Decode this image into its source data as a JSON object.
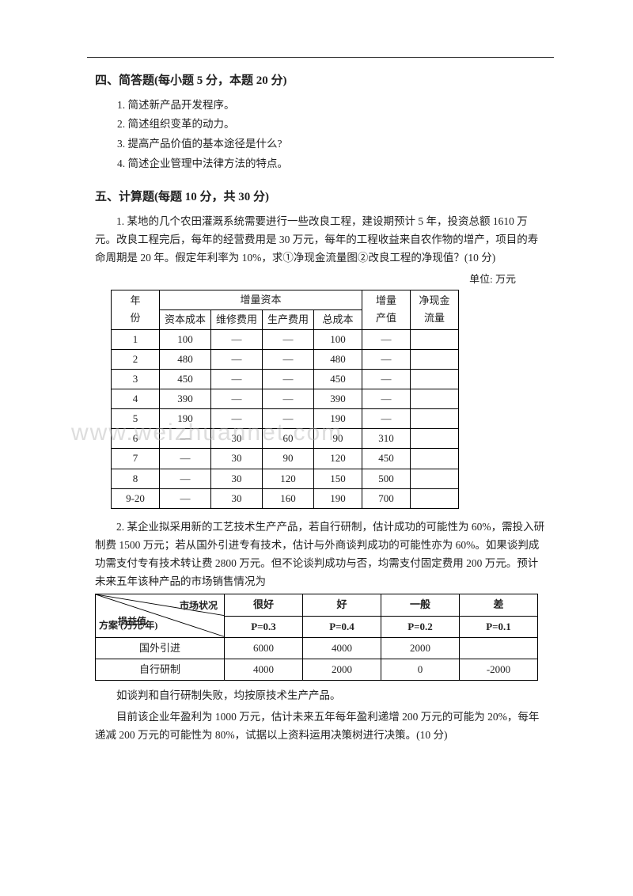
{
  "section4": {
    "heading": "四、简答题(每小题 5 分，本题 20 分)",
    "items": [
      "1. 简述新产品开发程序。",
      "2. 简述组织变革的动力。",
      "3. 提高产品价值的基本途径是什么?",
      "4. 简述企业管理中法律方法的特点。"
    ]
  },
  "section5": {
    "heading": "五、计算题(每题 10 分，共 30 分)",
    "q1_text": "1. 某地的几个农田灌溉系统需要进行一些改良工程，建设期预计 5 年，投资总额 1610 万元。改良工程完后，每年的经营费用是 30 万元，每年的工程收益来自农作物的增产，项目的寿命周期是 20 年。假定年利率为 10%，求①净现金流量图②改良工程的净现值？(10 分)",
    "unit_label": "单位: 万元",
    "table1": {
      "col_year_top": "年",
      "col_year_bot": "份",
      "col_cap": "增量资本",
      "col_cap1": "资本成本",
      "col_cap2": "维修费用",
      "col_cap3": "生产费用",
      "col_cap4": "总成本",
      "col_inc_top": "增量",
      "col_inc_bot": "产值",
      "col_cash_top": "净现金",
      "col_cash_bot": "流量",
      "rows": [
        {
          "y": "1",
          "c1": "100",
          "c2": "—",
          "c3": "—",
          "c4": "100",
          "inc": "—",
          "cash": ""
        },
        {
          "y": "2",
          "c1": "480",
          "c2": "—",
          "c3": "—",
          "c4": "480",
          "inc": "—",
          "cash": ""
        },
        {
          "y": "3",
          "c1": "450",
          "c2": "—",
          "c3": "—",
          "c4": "450",
          "inc": "—",
          "cash": ""
        },
        {
          "y": "4",
          "c1": "390",
          "c2": "—",
          "c3": "—",
          "c4": "390",
          "inc": "—",
          "cash": ""
        },
        {
          "y": "5",
          "c1": "190",
          "c2": "—",
          "c3": "—",
          "c4": "190",
          "inc": "—",
          "cash": ""
        },
        {
          "y": "6",
          "c1": "—",
          "c2": "30",
          "c3": "60",
          "c4": "90",
          "inc": "310",
          "cash": ""
        },
        {
          "y": "7",
          "c1": "—",
          "c2": "30",
          "c3": "90",
          "c4": "120",
          "inc": "450",
          "cash": ""
        },
        {
          "y": "8",
          "c1": "—",
          "c2": "30",
          "c3": "120",
          "c4": "150",
          "inc": "500",
          "cash": ""
        },
        {
          "y": "9-20",
          "c1": "—",
          "c2": "30",
          "c3": "160",
          "c4": "190",
          "inc": "700",
          "cash": ""
        }
      ]
    },
    "q2_text": "2. 某企业拟采用新的工艺技术生产产品，若自行研制，估计成功的可能性为 60%，需投入研制费 1500 万元；若从国外引进专有技术，估计与外商谈判成功的可能性亦为 60%。如果谈判成功需支付专有技术转让费 2800 万元。但不论谈判成功与否，均需支付固定费用 200 万元。预计未来五年该种产品的市场销售情况为",
    "table2": {
      "diag_top": "市场状况",
      "diag_mid": "损益值",
      "diag_bot": "方案        (万元/年)",
      "cols": [
        {
          "name": "很好",
          "p": "P=0.3"
        },
        {
          "name": "好",
          "p": "P=0.4"
        },
        {
          "name": "一般",
          "p": "P=0.2"
        },
        {
          "name": "差",
          "p": "P=0.1"
        }
      ],
      "rows": [
        {
          "label": "国外引进",
          "vals": [
            "6000",
            "4000",
            "2000",
            ""
          ]
        },
        {
          "label": "自行研制",
          "vals": [
            "4000",
            "2000",
            "0",
            "-2000"
          ]
        }
      ]
    },
    "tail1": "如谈判和自行研制失败，均按原技术生产产品。",
    "tail2": "目前该企业年盈利为 1000 万元，估计未来五年每年盈利递增 200 万元的可能为 20%，每年递减 200 万元的可能性为 80%，试据以上资料运用决策树进行决策。(10 分)"
  },
  "watermark": "www.weizhuannet.com"
}
